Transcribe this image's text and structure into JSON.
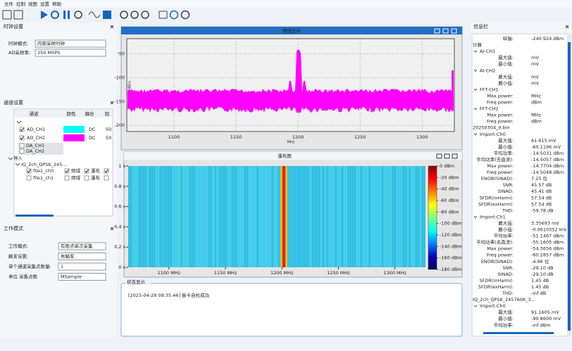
{
  "menu": [
    "文件",
    "控制",
    "视图",
    "设置",
    "帮助"
  ],
  "clock_panel": {
    "title": "时钟设置",
    "rows": [
      {
        "label": "时钟模式:",
        "value": "内部采样时钟"
      },
      {
        "label": "AD采样率:",
        "value": "250 MSPS"
      }
    ]
  },
  "channel_panel": {
    "title": "通道设置",
    "headers": [
      "通道",
      "颜色",
      "耦合",
      "阻"
    ],
    "channels": [
      {
        "name": "AD_CH1",
        "color": "#00ffff",
        "coupling": "DC",
        "impedance": "50"
      },
      {
        "name": "AD_CH2",
        "color": "#ff00ff",
        "coupling": "DC",
        "impedance": "50"
      }
    ],
    "da": [
      "DA_CH1",
      "DA_CH2"
    ],
    "import": "导入",
    "file": "IQ_2ch_QPSK_245...",
    "subs": [
      {
        "name": "file1_ch0",
        "checked": true,
        "options": [
          "频域",
          "瀑布"
        ]
      },
      {
        "name": "file1_ch1",
        "checked": false,
        "options": [
          "频域",
          "瀑布"
        ]
      }
    ]
  },
  "work_panel": {
    "title": "工作模式",
    "rows": [
      {
        "label": "工作模式:",
        "value": "有限点单次采集"
      },
      {
        "label": "触发设置:",
        "value": "有触发"
      },
      {
        "label": "单个通道采集点数量:",
        "value": "1"
      },
      {
        "label": "单位 采集点数",
        "value": "MSample"
      }
    ]
  },
  "spectrum": {
    "title": "频域显示",
    "xlabel": "MHz",
    "ylabel": "dBm",
    "xlim": [
      1062,
      1326
    ],
    "ylim": [
      -18,
      -213
    ],
    "xticks": [
      1100,
      1150,
      1200,
      1250,
      1300
    ],
    "yticks": [
      -50,
      -100,
      -150,
      -200
    ],
    "grid": true,
    "color": "#ff00ff"
  },
  "waterfall": {
    "title": "瀑布图",
    "xlim": [
      1064,
      1327
    ],
    "ylim": [
      0,
      1
    ],
    "xticks": [
      {
        "value": 1100,
        "label": "1100 MHz"
      },
      {
        "value": 1150,
        "label": "1150 MHz"
      },
      {
        "value": 1200,
        "label": "1200 MHz"
      },
      {
        "value": 1250,
        "label": "1250 MHz"
      },
      {
        "value": 1300,
        "label": "1300 MHz"
      }
    ],
    "yticks": [
      {
        "value": 1,
        "label": "1 s"
      },
      {
        "value": 0.8,
        "label": "0.8 s"
      },
      {
        "value": 0.6,
        "label": "0.6 s"
      },
      {
        "value": 0.4,
        "label": "0.4 s"
      },
      {
        "value": 0.2,
        "label": "0.2 s"
      },
      {
        "value": 0,
        "label": "0 s"
      }
    ],
    "clim": [
      0,
      -180
    ],
    "cticks": [
      {
        "value": 0,
        "label": "0 dBm"
      },
      {
        "value": -20,
        "label": "-20 dBm"
      },
      {
        "value": -40,
        "label": "-40 dBm"
      },
      {
        "value": -60,
        "label": "-60 dBm"
      },
      {
        "value": -80,
        "label": "-80 dBm"
      },
      {
        "value": -100,
        "label": "-100 dBm"
      },
      {
        "value": -120,
        "label": "-120 dBm"
      },
      {
        "value": -140,
        "label": "-140 dBm"
      },
      {
        "value": -160,
        "label": "-160 dBm"
      },
      {
        "value": -180,
        "label": "-180 dBm"
      }
    ]
  },
  "status": {
    "title": "状态显示",
    "message": "[2025-04-28 09:35:46] 板卡自检成功"
  },
  "info": {
    "title": "信息栏",
    "items": [
      {
        "label": "纵轴:",
        "value": "-240.924 dBm"
      },
      {
        "heading": "计算"
      },
      {
        "group": "AI-CH1"
      },
      {
        "label": "最大值:",
        "value": "mV"
      },
      {
        "label": "最小值:",
        "value": "mV"
      },
      {
        "group": "AI-CH2"
      },
      {
        "label": "最大值:",
        "value": "mV"
      },
      {
        "label": "最小值:",
        "value": "mV"
      },
      {
        "group": "FFT-CH1"
      },
      {
        "label": "Max power:",
        "value": "MHz"
      },
      {
        "label": "Freq power:",
        "value": "dBm"
      },
      {
        "group": "FFT-CH2"
      },
      {
        "label": "Max power:",
        "value": "MHz"
      },
      {
        "label": "Freq power:",
        "value": "dBm"
      },
      {
        "heading": "20250304_0.bin"
      },
      {
        "group": "Import-Ch0"
      },
      {
        "label": "最大值:",
        "value": "61.615 mV"
      },
      {
        "label": "最小值:",
        "value": "-60.1196 mV"
      },
      {
        "label": "平均功率:",
        "value": "-14.5031 dBm"
      },
      {
        "label": "平均功率(去直流):",
        "value": "-14.5057 dBm"
      },
      {
        "label": "Max power:",
        "value": "-14.7704 dBm"
      },
      {
        "label": "Freq power:",
        "value": "-14.5048 dBm"
      },
      {
        "label": "ENOB(SINAD):",
        "value": "7.25 位"
      },
      {
        "label": "SNR:",
        "value": "45.57 dB"
      },
      {
        "label": "SINAD:",
        "value": "45.41 dB"
      },
      {
        "label": "SFDR(inHarm):",
        "value": "57.54 dB"
      },
      {
        "label": "SFDR(exHarm):",
        "value": "57.54 dB"
      },
      {
        "label": "THD:",
        "value": "-59.78 dB"
      },
      {
        "group": "Import-Ch1"
      },
      {
        "label": "最大值:",
        "value": "3.35693 mV"
      },
      {
        "label": "最小值:",
        "value": "-0.0610352 mV"
      },
      {
        "label": "平均功率:",
        "value": "-51.1467 dBm"
      },
      {
        "label": "平均功率(去直流):",
        "value": "-55.1605 dBm"
      },
      {
        "label": "Max power:",
        "value": "-54.3656 dBm"
      },
      {
        "label": "Freq power:",
        "value": "-60.2857 dBm"
      },
      {
        "label": "ENOB(SINAD):",
        "value": "-4.96 位"
      },
      {
        "label": "SNR:",
        "value": "-29.10 dB"
      },
      {
        "label": "SINAD:",
        "value": "-29.10 dB"
      },
      {
        "label": "SFDR(inHarm):",
        "value": "1.45 dB"
      },
      {
        "label": "SFDR(exHarm):",
        "value": "1.45 dB"
      },
      {
        "label": "THD:",
        "value": "-inf dB"
      },
      {
        "heading": "IQ_2ch_QPSK_245760K_3..."
      },
      {
        "group": "Import-Ch0"
      },
      {
        "label": "最大值:",
        "value": "91.1605 mV"
      },
      {
        "label": "最小值:",
        "value": "-90.8600 mV"
      },
      {
        "label": "平均功率:",
        "value": "-inf dBm"
      }
    ]
  }
}
